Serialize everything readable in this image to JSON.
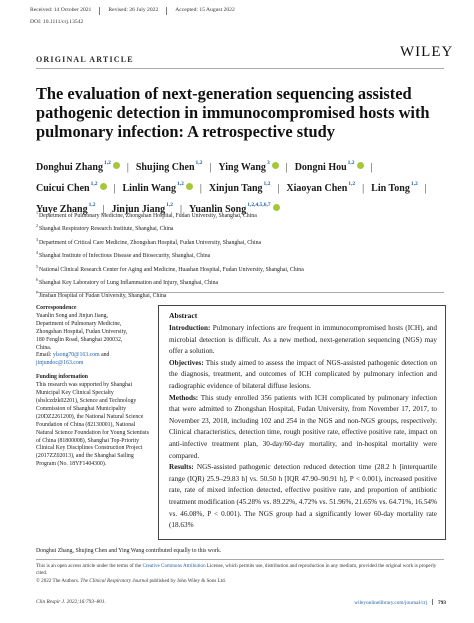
{
  "header": {
    "received": "Received: 14 October 2021",
    "revised": "Revised: 26 July 2022",
    "accepted": "Accepted: 15 August 2022",
    "doi": "DOI: 10.1111/crj.13542",
    "article_type": "ORIGINAL ARTICLE",
    "publisher": "WILEY"
  },
  "title": "The evaluation of next-generation sequencing assisted pathogenic detection in immunocompromised hosts with pulmonary infection: A retrospective study",
  "authors": [
    {
      "name": "Donghui Zhang",
      "sup": "1,2",
      "orcid": true
    },
    {
      "name": "Shujing Chen",
      "sup": "1,2",
      "orcid": false
    },
    {
      "name": "Ying Wang",
      "sup": "3",
      "orcid": true
    },
    {
      "name": "Dongni Hou",
      "sup": "1,2",
      "orcid": true
    },
    {
      "name": "Cuicui Chen",
      "sup": "1,2",
      "orcid": true
    },
    {
      "name": "Linlin Wang",
      "sup": "1,2",
      "orcid": true
    },
    {
      "name": "Xinjun Tang",
      "sup": "1,2",
      "orcid": false
    },
    {
      "name": "Xiaoyan Chen",
      "sup": "1,2",
      "orcid": false
    },
    {
      "name": "Lin Tong",
      "sup": "1,2",
      "orcid": false
    },
    {
      "name": "Yuye Zhang",
      "sup": "1,2",
      "orcid": false
    },
    {
      "name": "Jinjun Jiang",
      "sup": "1,2",
      "orcid": false
    },
    {
      "name": "Yuanlin Song",
      "sup": "1,2,4,5,6,7",
      "orcid": true
    }
  ],
  "affiliations": [
    {
      "n": "1",
      "text": "Department of Pulmonary Medicine, Zhongshan Hospital, Fudan University, Shanghai, China"
    },
    {
      "n": "2",
      "text": "Shanghai Respiratory Research Institute, Shanghai, China"
    },
    {
      "n": "3",
      "text": "Department of Critical Care Medicine, Zhongshan Hospital, Fudan University, Shanghai, China"
    },
    {
      "n": "4",
      "text": "Shanghai Institute of Infectious Disease and Biosecurity, Shanghai, China"
    },
    {
      "n": "5",
      "text": "National Clinical Research Center for Aging and Medicine, Huashan Hospital, Fudan University, Shanghai, China"
    },
    {
      "n": "6",
      "text": "Shanghai Key Laboratory of Lung Inflammation and Injury, Shanghai, China"
    },
    {
      "n": "7",
      "text": "Jinshan Hospital of Fudan University, Shanghai, China"
    }
  ],
  "correspondence": {
    "heading": "Correspondence",
    "lines": [
      "Yuanlin Song and Jinjun Jiang,",
      "Department of Pulmonary Medicine,",
      "Zhongshan Hospital, Fudan University,",
      "180 Fenglin Road, Shanghai 200032,",
      "China."
    ],
    "email1_label": "Email: ",
    "email1": "ylsong70@163.com",
    "email1_suffix": " and",
    "email2": "jinjundoc@163.com"
  },
  "funding": {
    "heading": "Funding information",
    "text": "This research was supported by Shanghai Municipal Key Clinical Specialty (shslczdzk02201), Science and Technology Commission of Shanghai Municipality (20DZ2261200), the National Natural Science Foundation of China (82130001), National Natural Science Foundation for Young Scientists of China (81800008), Shanghai Top-Priority Clinical Key Disciplines Construction Project (2017ZZ02013), and the Shanghai Sailing Program (No. 18YF1404300)."
  },
  "abstract": {
    "heading": "Abstract",
    "intro_label": "Introduction:",
    "intro": " Pulmonary infections are frequent in immunocompromised hosts (ICH), and microbial detection is difficult. As a new method, next-generation sequencing (NGS) may offer a solution.",
    "objectives_label": "Objectives:",
    "objectives": " This study aimed to assess the impact of NGS-assisted pathogenic detection on the diagnosis, treatment, and outcomes of ICH complicated by pulmonary infection and radiographic evidence of bilateral diffuse lesions.",
    "methods_label": "Methods:",
    "methods": " This study enrolled 356 patients with ICH complicated by pulmonary infection that were admitted to Zhongshan Hospital, Fudan University, from November 17, 2017, to November 23, 2018, including 102 and 254 in the NGS and non-NGS groups, respectively. Clinical characteristics, detection time, rough positive rate, effective positive rate, impact on anti-infective treatment plan, 30-day/60-day mortality, and in-hospital mortality were compared.",
    "results_label": "Results:",
    "results": " NGS-assisted pathogenic detection reduced detection time (28.2 h [interquartile range (IQR) 25.9–29.83 h] vs. 50.50 h [IQR 47.90–90.91 h], P < 0.001), increased positive rate, rate of mixed infection detected, effective positive rate, and proportion of antibiotic treatment modification (45.28% vs. 89.22%, 4.72% vs. 51.96%, 21.65% vs. 64.71%, 16.54% vs. 46.08%, P < 0.001). The NGS group had a significantly lower 60-day mortality rate (18.63%"
  },
  "equal_contribution": "Donghui Zhang, Shujing Chen and Ying Wang contributed equally to this work.",
  "license": {
    "line1_pre": "This is an open access article under the terms of the ",
    "line1_link": "Creative Commons Attribution",
    "line1_post": " License, which permits use, distribution and reproduction in any medium, provided the original work is properly cited.",
    "line2_pre": "© 2022 The Authors. ",
    "line2_journal": "The Clinical Respiratory Journal",
    "line2_post": " published by John Wiley & Sons Ltd."
  },
  "footer": {
    "citation": "Clin Respir J. 2022;16:793–801.",
    "url": "wileyonlinelibrary.com/journal/crj",
    "page": "793"
  }
}
